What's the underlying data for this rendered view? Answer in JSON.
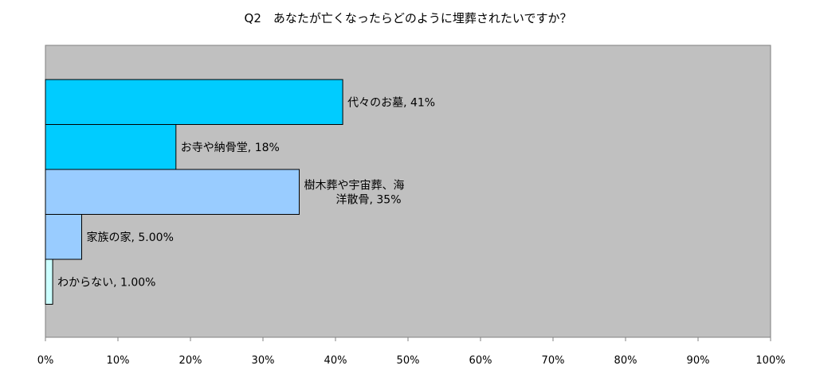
{
  "chart_data": {
    "type": "bar",
    "orientation": "horizontal",
    "title": "Q2　あなたが亡くなったらどのように埋葬されたいですか？",
    "categories": [
      "代々のお墓",
      "お寺や納骨堂",
      "樹木葬や宇宙葬、海洋散骨",
      "家族の家",
      "わからない"
    ],
    "values": [
      41,
      18,
      35,
      5,
      1
    ],
    "data_labels": [
      [
        "代々のお墓, 41%"
      ],
      [
        "お寺や納骨堂, 18%"
      ],
      [
        "樹木葬や宇宙葬、海",
        "洋散骨, 35%"
      ],
      [
        "家族の家, 5.00%"
      ],
      [
        "わからない, 1.00%"
      ]
    ],
    "bar_colors": [
      "#00ccff",
      "#00ccff",
      "#99ccff",
      "#99ccff",
      "#ccffff"
    ],
    "xlim": [
      0,
      100
    ],
    "xticks": [
      "0%",
      "10%",
      "20%",
      "30%",
      "40%",
      "50%",
      "60%",
      "70%",
      "80%",
      "90%",
      "100%"
    ],
    "xlabel": "",
    "ylabel": "",
    "plot_background": "#c0c0c0",
    "grid": false,
    "legend": "none"
  }
}
